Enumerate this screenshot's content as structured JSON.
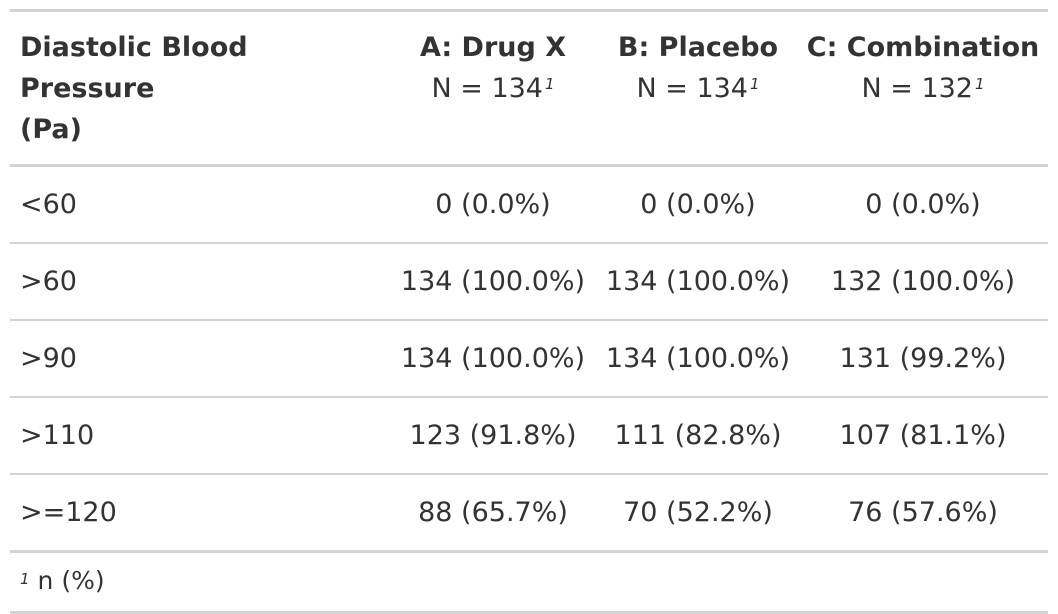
{
  "table": {
    "stub_header": {
      "line1": "Diastolic Blood Pressure",
      "line2": "(Pa)"
    },
    "columns": [
      {
        "label": "A: Drug X",
        "n": "N = 134",
        "footnote_mark": "1"
      },
      {
        "label": "B: Placebo",
        "n": "N = 134",
        "footnote_mark": "1"
      },
      {
        "label": "C: Combination",
        "n": "N = 132",
        "footnote_mark": "1"
      }
    ],
    "rows": [
      {
        "label": "<60",
        "values": [
          "0 (0.0%)",
          "0 (0.0%)",
          "0 (0.0%)"
        ]
      },
      {
        "label": ">60",
        "values": [
          "134 (100.0%)",
          "134 (100.0%)",
          "132 (100.0%)"
        ]
      },
      {
        "label": ">90",
        "values": [
          "134 (100.0%)",
          "134 (100.0%)",
          "131 (99.2%)"
        ]
      },
      {
        "label": ">110",
        "values": [
          "123 (91.8%)",
          "111 (82.8%)",
          "107 (81.1%)"
        ]
      },
      {
        "label": ">=120",
        "values": [
          "88 (65.7%)",
          "70 (52.2%)",
          "76 (57.6%)"
        ]
      }
    ],
    "footnote": {
      "mark": "1",
      "text": "n (%)"
    }
  }
}
